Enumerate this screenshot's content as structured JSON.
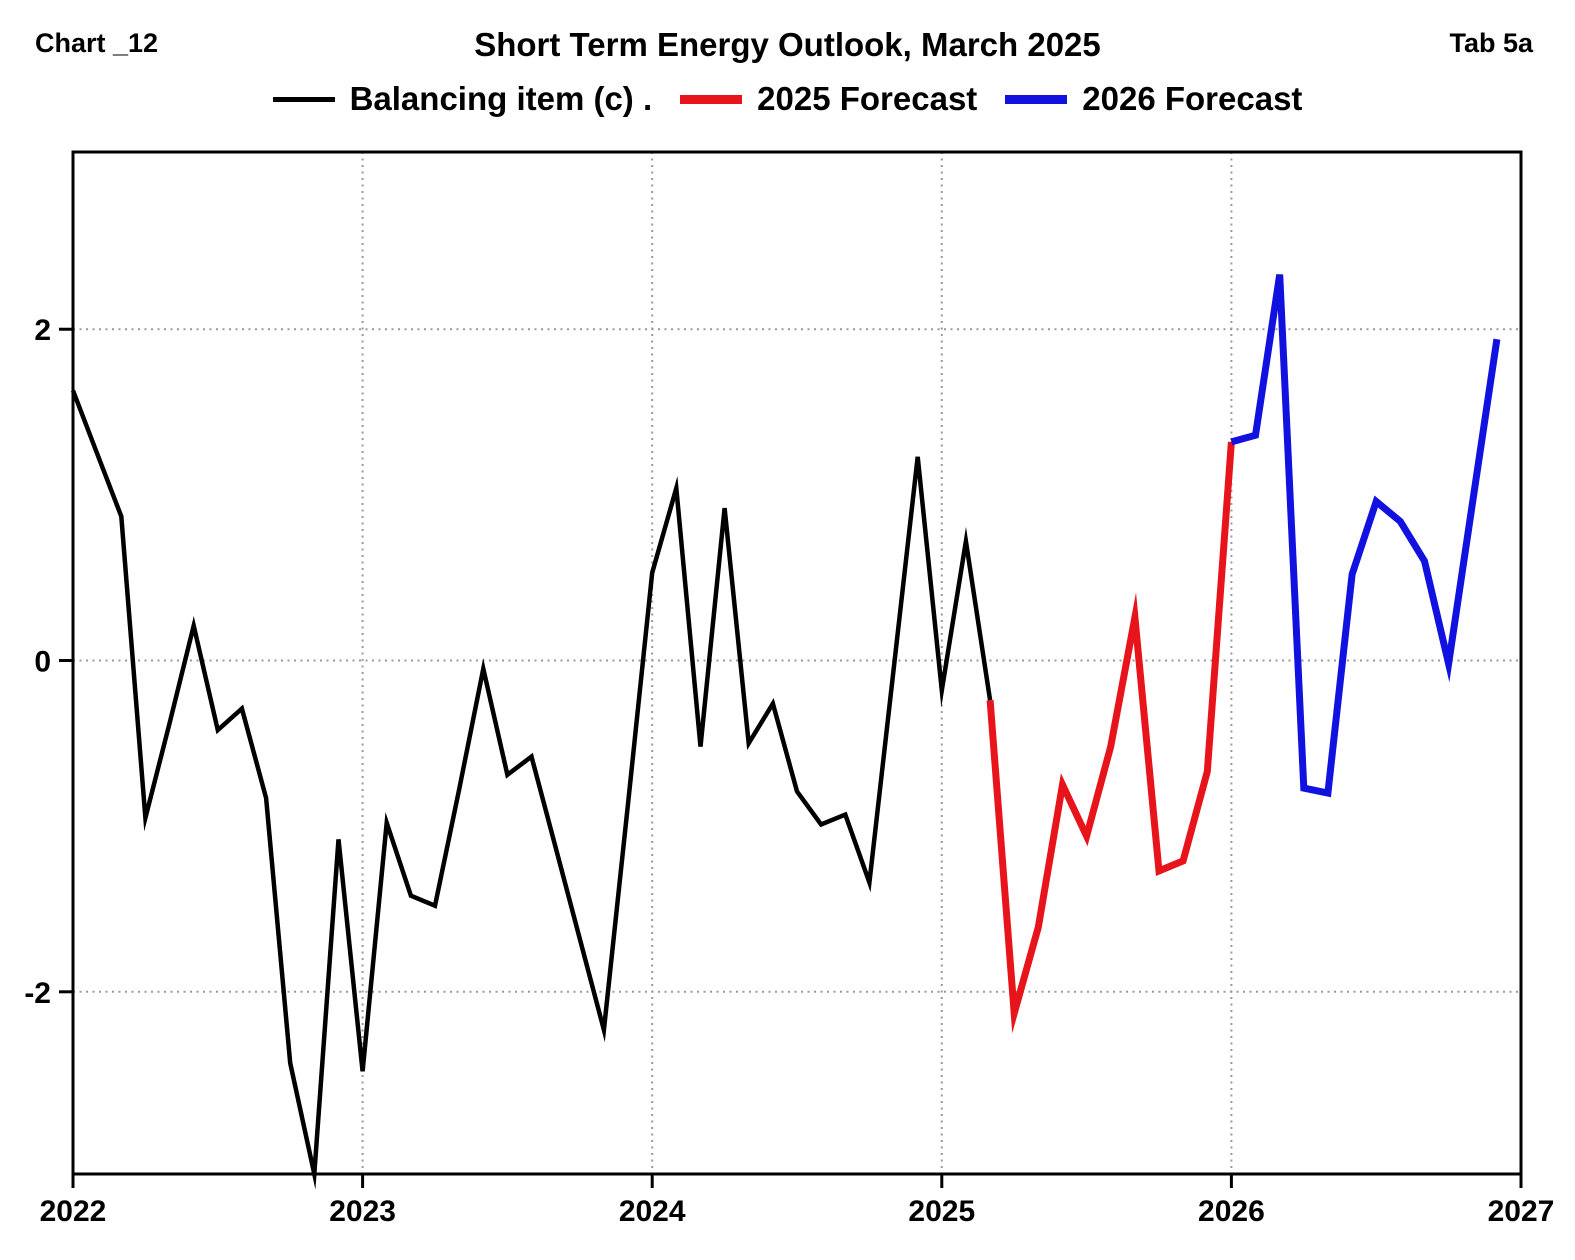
{
  "header": {
    "left": "Chart _12",
    "title": "Short Term Energy Outlook, March 2025",
    "right": "Tab 5a"
  },
  "legend": {
    "items": [
      {
        "label": "Balancing item (c) .",
        "color": "#000000",
        "sample_thickness": 5
      },
      {
        "label": "2025 Forecast",
        "color": "#e8141c",
        "sample_thickness": 9
      },
      {
        "label": "2026 Forecast",
        "color": "#1212e0",
        "sample_thickness": 9
      }
    ]
  },
  "chart_data": {
    "type": "line",
    "title": "Short Term Energy Outlook, March 2025",
    "frequency": "monthly",
    "x_axis": {
      "min": 2022,
      "max": 2027,
      "tick_values": [
        2022,
        2023,
        2024,
        2025,
        2026,
        2027
      ],
      "tick_labels": [
        "2022",
        "2023",
        "2024",
        "2025",
        "2026",
        "2027"
      ]
    },
    "y_axis": {
      "min": -3.1,
      "max": 3.07,
      "tick_values": [
        2,
        0,
        -2
      ],
      "tick_labels": [
        "2",
        "0",
        "-2"
      ]
    },
    "grid": {
      "style": "dotted",
      "color": "#999999",
      "vertical_at": [
        2023,
        2024,
        2025,
        2026,
        2027
      ],
      "horizontal_at": [
        2,
        0,
        -2
      ]
    },
    "series": [
      {
        "name": "Balancing item (c) .",
        "color": "#000000",
        "line_width": 4.5,
        "start": {
          "year": 2022,
          "month": 1
        },
        "values": [
          1.63,
          1.25,
          0.87,
          -0.95,
          -0.38,
          0.21,
          -0.42,
          -0.29,
          -0.83,
          -2.43,
          -3.1,
          -1.08,
          -2.48,
          -0.98,
          -1.42,
          -1.48,
          -0.78,
          -0.05,
          -0.69,
          -0.58,
          -1.13,
          -1.68,
          -2.23,
          -0.86,
          0.53,
          1.04,
          -0.52,
          0.92,
          -0.5,
          -0.26,
          -0.79,
          -0.99,
          -0.93,
          -1.34,
          -0.06,
          1.23,
          -0.18,
          0.72,
          -0.24
        ]
      },
      {
        "name": "2025 Forecast",
        "color": "#e8141c",
        "line_width": 7,
        "start": {
          "year": 2025,
          "month": 3
        },
        "values": [
          -0.24,
          -2.13,
          -1.61,
          -0.75,
          -1.06,
          -0.52,
          0.26,
          -1.27,
          -1.21,
          -0.67,
          1.32
        ]
      },
      {
        "name": "2026 Forecast",
        "color": "#1212e0",
        "line_width": 7,
        "start": {
          "year": 2026,
          "month": 1
        },
        "values": [
          1.32,
          1.36,
          2.33,
          -0.77,
          -0.8,
          0.52,
          0.96,
          0.84,
          0.6,
          -0.02,
          0.96,
          1.94
        ]
      }
    ]
  }
}
